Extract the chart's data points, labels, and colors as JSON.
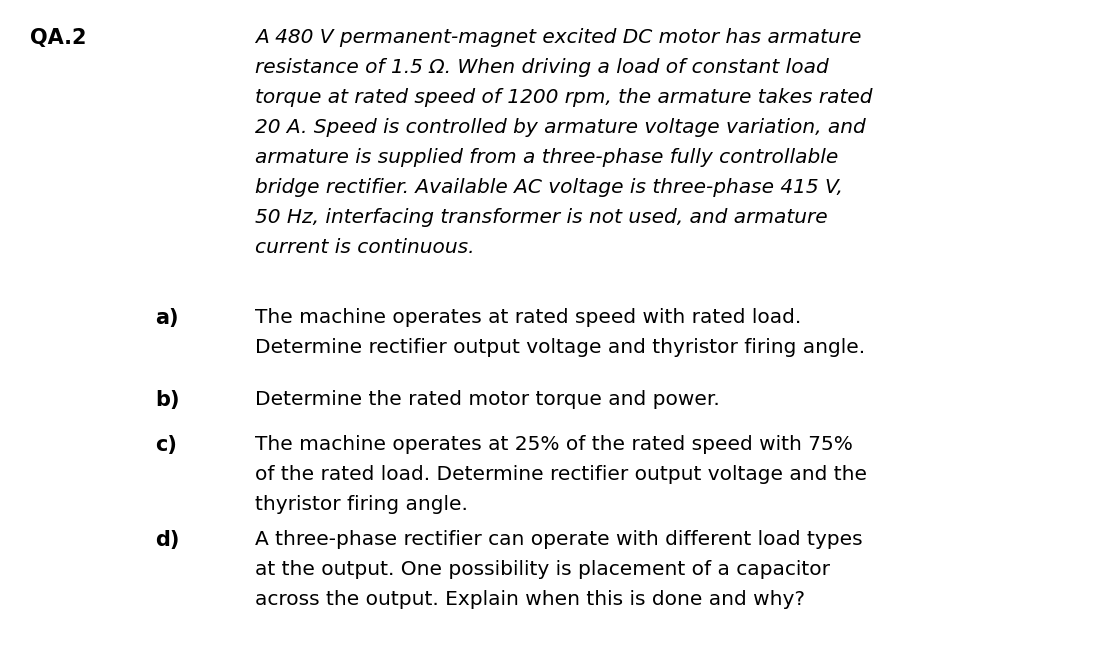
{
  "background_color": "#ffffff",
  "fig_width": 10.97,
  "fig_height": 6.47,
  "dpi": 100,
  "qa_label": "QA.2",
  "qa_label_fontsize": 15,
  "qa_label_fontweight": "bold",
  "header_fontsize": 14.5,
  "header_style": "italic",
  "item_fontsize": 14.5,
  "label_fontsize": 15,
  "label_fontweight": "bold",
  "header_text_lines": [
    "A 480 V permanent-magnet excited DC motor has armature",
    "resistance of 1.5 Ω. When driving a load of constant load",
    "torque at rated speed of 1200 rpm, the armature takes rated",
    "20 A. Speed is controlled by armature voltage variation, and",
    "armature is supplied from a three-phase fully controllable",
    "bridge rectifier. Available AC voltage is three-phase 415 V,",
    "50 Hz, interfacing transformer is not used, and armature",
    "current is continuous."
  ],
  "items": [
    {
      "label": "a)",
      "text_lines": [
        "The machine operates at rated speed with rated load.",
        "Determine rectifier output voltage and thyristor firing angle."
      ]
    },
    {
      "label": "b)",
      "text_lines": [
        "Determine the rated motor torque and power."
      ]
    },
    {
      "label": "c)",
      "text_lines": [
        "The machine operates at 25% of the rated speed with 75%",
        "of the rated load. Determine rectifier output voltage and the",
        "thyristor firing angle."
      ]
    },
    {
      "label": "d)",
      "text_lines": [
        "A three-phase rectifier can operate with different load types",
        "at the output. One possibility is placement of a capacitor",
        "across the output. Explain when this is done and why?"
      ]
    }
  ]
}
